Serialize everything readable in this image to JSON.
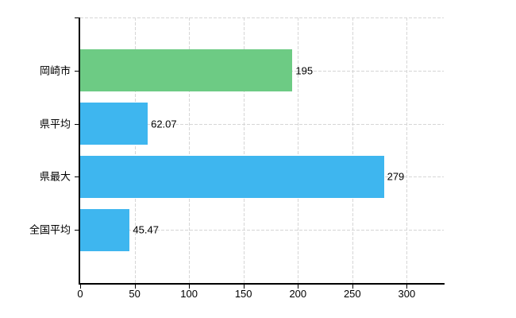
{
  "chart_data": {
    "type": "bar",
    "orientation": "horizontal",
    "title": "",
    "xlabel": "",
    "ylabel": "",
    "categories": [
      "岡崎市",
      "県平均",
      "県最大",
      "全国平均"
    ],
    "values": [
      195,
      62.07,
      279,
      45.47
    ],
    "value_labels": [
      "195",
      "62.07",
      "279",
      "45.47"
    ],
    "bar_colors": [
      "#6dcb84",
      "#3eb6ef",
      "#3eb6ef",
      "#3eb6ef"
    ],
    "x_ticks": [
      0,
      50,
      100,
      150,
      200,
      250,
      300
    ],
    "x_tick_labels": [
      "0",
      "50",
      "100",
      "150",
      "200",
      "250",
      "300"
    ],
    "xlim": [
      0,
      334
    ],
    "grid": {
      "style": "dashed",
      "color": "#d6d6d6",
      "vertical_at_x_ticks": true,
      "horizontal_at_category_centers": true,
      "top_border": true
    },
    "legend": "none",
    "axis_color": "#000000",
    "text_color": "#000000",
    "background": "#ffffff"
  }
}
